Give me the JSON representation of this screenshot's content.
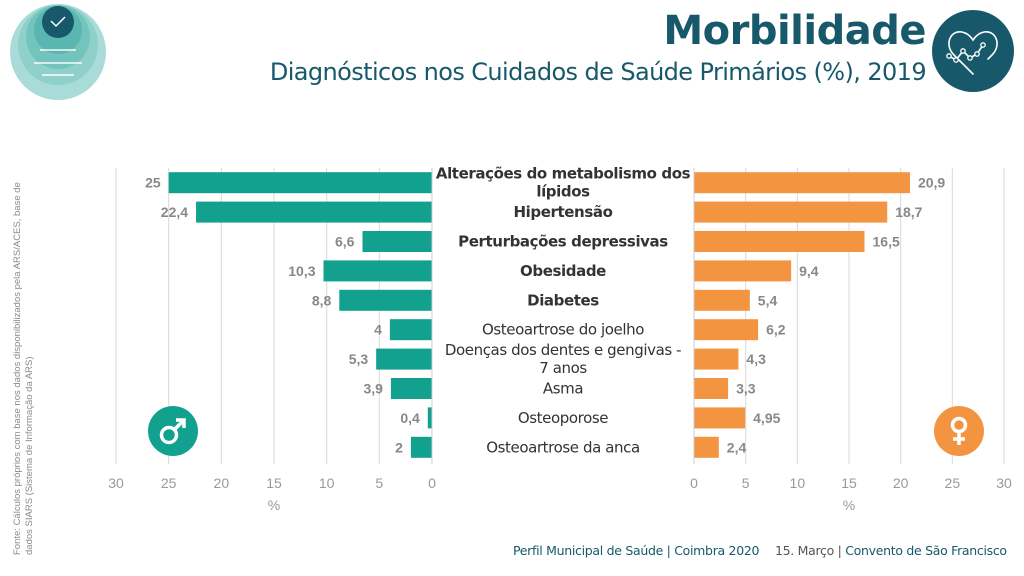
{
  "header": {
    "title": "Morbilidade",
    "subtitle": "Diagnósticos nos Cuidados de Saúde Primários (%), 2019",
    "icon": "heart-chart-icon",
    "logo_icon": "health-determinants-rings-logo"
  },
  "source_note": "Fonte: Cálculos próprios com base nos dados disponibilizados pela ARS/ACES, base de dados SIARS (Sistema de Informação da ARS)",
  "footer": {
    "left": "Perfil Municipal de Saúde | Coimbra 2020",
    "right_date": "15. Março | ",
    "right_place": "Convento de São Francisco"
  },
  "colors": {
    "primary": "#17596b",
    "male": "#12a08f",
    "female": "#f29440",
    "label_text": "#888888",
    "grid": "#d9d9d9"
  },
  "chart_data": {
    "type": "bar",
    "orientation": "horizontal-butterfly",
    "title": "Diagnósticos nos Cuidados de Saúde Primários (%), 2019",
    "categories": [
      [
        "Alterações do metabolismo dos",
        "lípidos"
      ],
      [
        "Hipertensão"
      ],
      [
        "Perturbações depressivas"
      ],
      [
        "Obesidade"
      ],
      [
        "Diabetes"
      ],
      [
        "Osteoartrose do joelho"
      ],
      [
        "Doenças dos dentes e gengivas -",
        "7 anos"
      ],
      [
        "Asma"
      ],
      [
        "Osteoporose"
      ],
      [
        "Osteoartrose da anca"
      ]
    ],
    "series": [
      {
        "name": "Homens",
        "icon": "male-symbol-icon",
        "side": "left",
        "values": [
          25,
          22.4,
          6.6,
          10.3,
          8.8,
          4,
          5.3,
          3.9,
          0.4,
          2
        ],
        "labels": [
          "25",
          "22,4",
          "6,6",
          "10,3",
          "8,8",
          "4",
          "5,3",
          "3,9",
          "0,4",
          "2"
        ]
      },
      {
        "name": "Mulheres",
        "icon": "female-symbol-icon",
        "side": "right",
        "values": [
          20.9,
          18.7,
          16.5,
          9.4,
          5.4,
          6.2,
          4.3,
          3.3,
          4.95,
          2.4
        ],
        "labels": [
          "20,9",
          "18,7",
          "16,5",
          "9,4",
          "5,4",
          "6,2",
          "4,3",
          "3,3",
          "4,95",
          "2,4"
        ]
      }
    ],
    "xlabel": "%",
    "xlim": [
      0,
      30
    ],
    "xticks": [
      0,
      5,
      10,
      15,
      20,
      25,
      30
    ],
    "grid": true,
    "legend": "none"
  }
}
